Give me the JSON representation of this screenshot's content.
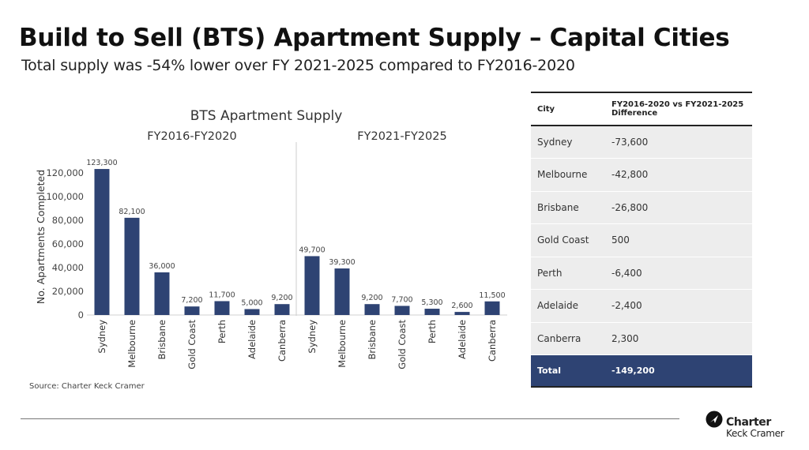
{
  "header": {
    "title": "Build to Sell (BTS) Apartment Supply – Capital Cities",
    "subtitle": "Total supply was -54% lower over FY 2021-2025 compared to FY2016-2020"
  },
  "chart_data": {
    "type": "bar",
    "title": "BTS Apartment Supply",
    "xlabel": "",
    "ylabel": "No. Apartments Completed",
    "ylim": [
      0,
      130000
    ],
    "yticks": [
      0,
      20000,
      40000,
      60000,
      80000,
      100000,
      120000
    ],
    "ytick_labels": [
      "0",
      "20,000",
      "40,000",
      "60,000",
      "80,000",
      "100,000",
      "120,000"
    ],
    "grid": false,
    "bar_color": "#2e4373",
    "panels": [
      {
        "name": "FY2016-FY2020",
        "categories": [
          "Sydney",
          "Melbourne",
          "Brisbane",
          "Gold Coast",
          "Perth",
          "Adelaide",
          "Canberra"
        ],
        "values": [
          123300,
          82100,
          36000,
          7200,
          11700,
          5000,
          9200
        ],
        "value_labels": [
          "123,300",
          "82,100",
          "36,000",
          "7,200",
          "11,700",
          "5,000",
          "9,200"
        ]
      },
      {
        "name": "FY2021-FY2025",
        "categories": [
          "Sydney",
          "Melbourne",
          "Brisbane",
          "Gold Coast",
          "Perth",
          "Adelaide",
          "Canberra"
        ],
        "values": [
          49700,
          39300,
          9200,
          7700,
          5300,
          2600,
          11500
        ],
        "value_labels": [
          "49,700",
          "39,300",
          "9,200",
          "7,700",
          "5,300",
          "2,600",
          "11,500"
        ]
      }
    ]
  },
  "source": "Source: Charter Keck Cramer",
  "table": {
    "col_city": "City",
    "col_diff_line1": "FY2016-2020 vs FY2021-2025",
    "col_diff_line2": "Difference",
    "rows": [
      {
        "city": "Sydney",
        "diff": "-73,600"
      },
      {
        "city": "Melbourne",
        "diff": "-42,800"
      },
      {
        "city": "Brisbane",
        "diff": "-26,800"
      },
      {
        "city": "Gold Coast",
        "diff": "500"
      },
      {
        "city": "Perth",
        "diff": "-6,400"
      },
      {
        "city": "Adelaide",
        "diff": "-2,400"
      },
      {
        "city": "Canberra",
        "diff": "2,300"
      }
    ],
    "total": {
      "city": "Total",
      "diff": "-149,200"
    },
    "total_color": "#2e4373"
  },
  "logo": {
    "line1": "Charter",
    "line2": "Keck Cramer"
  }
}
